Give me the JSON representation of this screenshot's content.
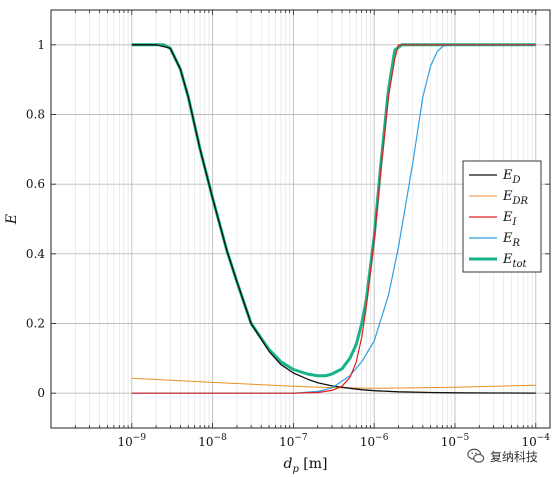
{
  "chart_data": {
    "type": "line",
    "xscale": "log",
    "xlim": [
      1e-10,
      0.00015
    ],
    "ylim": [
      -0.1,
      1.1
    ],
    "xlabel": "d_p [m]",
    "ylabel": "E",
    "grid": true,
    "legend_position": "right",
    "x_tick_labels": [
      "10^-9",
      "10^-8",
      "10^-7",
      "10^-6",
      "10^-5",
      "10^-4"
    ],
    "x_ticks": [
      1e-09,
      1e-08,
      1e-07,
      1e-06,
      1e-05,
      0.0001
    ],
    "y_ticks": [
      0,
      0.2,
      0.4,
      0.6,
      0.8,
      1
    ],
    "y_tick_labels": [
      "0",
      "0.2",
      "0.4",
      "0.6",
      "0.8",
      "1"
    ],
    "series": [
      {
        "name": "E_D",
        "color": "#111111",
        "width": 1.3,
        "x": [
          1e-09,
          2e-09,
          3e-09,
          4e-09,
          5e-09,
          7e-09,
          1e-08,
          1.5e-08,
          2e-08,
          3e-08,
          5e-08,
          7e-08,
          1e-07,
          1.5e-07,
          2e-07,
          3e-07,
          5e-07,
          7e-07,
          1e-06,
          2e-06,
          5e-06,
          1e-05,
          3e-05,
          0.0001
        ],
        "y": [
          1.0,
          1.0,
          0.99,
          0.93,
          0.85,
          0.7,
          0.56,
          0.41,
          0.32,
          0.2,
          0.12,
          0.082,
          0.058,
          0.04,
          0.03,
          0.021,
          0.014,
          0.01,
          0.007,
          0.004,
          0.002,
          0.001,
          0.0005,
          0.0002
        ]
      },
      {
        "name": "E_DR",
        "color": "#e8902a",
        "width": 1.0,
        "x": [
          1e-09,
          1e-08,
          1e-07,
          3e-07,
          1e-06,
          1e-05,
          0.0001
        ],
        "y": [
          0.043,
          0.031,
          0.02,
          0.016,
          0.014,
          0.017,
          0.023
        ]
      },
      {
        "name": "E_I",
        "color": "#e02020",
        "width": 1.2,
        "x": [
          1e-09,
          1e-08,
          1e-07,
          2e-07,
          3e-07,
          4e-07,
          5e-07,
          6e-07,
          7e-07,
          8e-07,
          9e-07,
          1e-06,
          1.2e-06,
          1.5e-06,
          1.8e-06,
          2e-06,
          3e-06,
          1e-05,
          0.0001
        ],
        "y": [
          0,
          0,
          0,
          0.002,
          0.008,
          0.02,
          0.045,
          0.09,
          0.16,
          0.25,
          0.35,
          0.44,
          0.63,
          0.85,
          0.96,
          1.0,
          1.0,
          1.0,
          1.0
        ]
      },
      {
        "name": "E_R",
        "color": "#2f9fe0",
        "width": 1.2,
        "x": [
          1e-09,
          1e-08,
          1e-07,
          2e-07,
          3e-07,
          5e-07,
          7e-07,
          1e-06,
          1.5e-06,
          2e-06,
          3e-06,
          4e-06,
          5e-06,
          6e-06,
          7e-06,
          8e-06,
          1e-05,
          0.0001
        ],
        "y": [
          0,
          0,
          0,
          0.005,
          0.015,
          0.05,
          0.09,
          0.15,
          0.28,
          0.42,
          0.66,
          0.85,
          0.94,
          0.98,
          0.995,
          1.0,
          1.0,
          1.0
        ]
      },
      {
        "name": "E_tot",
        "color": "#17b38a",
        "width": 3.0,
        "x": [
          1e-09,
          2e-09,
          2.5e-09,
          3e-09,
          4e-09,
          5e-09,
          7e-09,
          1e-08,
          1.5e-08,
          2e-08,
          3e-08,
          5e-08,
          7e-08,
          1e-07,
          1.5e-07,
          2e-07,
          2.5e-07,
          3e-07,
          4e-07,
          5e-07,
          6e-07,
          7e-07,
          8e-07,
          1e-06,
          1.2e-06,
          1.5e-06,
          1.8e-06,
          2.2e-06,
          3e-06,
          1e-05,
          0.0001
        ],
        "y": [
          1.0,
          1.0,
          1.0,
          0.99,
          0.93,
          0.85,
          0.7,
          0.56,
          0.41,
          0.32,
          0.2,
          0.125,
          0.09,
          0.068,
          0.055,
          0.05,
          0.05,
          0.055,
          0.07,
          0.1,
          0.14,
          0.2,
          0.27,
          0.45,
          0.65,
          0.87,
          0.985,
          1.0,
          1.0,
          1.0,
          1.0
        ]
      }
    ]
  },
  "watermark": {
    "text": "复纳科技",
    "icon": "wechat-icon"
  }
}
